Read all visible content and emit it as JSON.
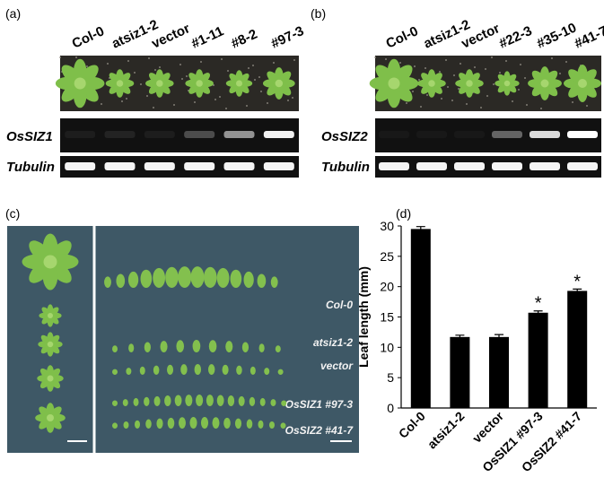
{
  "panels": {
    "a": {
      "label": "(a)",
      "lanes": [
        "Col-0",
        "atsiz1-2",
        "vector",
        "#1-11",
        "#8-2",
        "#97-3"
      ],
      "genes": [
        "OsSIZ1",
        "Tubulin"
      ]
    },
    "b": {
      "label": "(b)",
      "lanes": [
        "Col-0",
        "atsiz1-2",
        "vector",
        "#22-3",
        "#35-10",
        "#41-7"
      ],
      "genes": [
        "OsSIZ2",
        "Tubulin"
      ]
    },
    "c": {
      "label": "(c)",
      "rows": [
        "Col-0",
        "atsiz1-2",
        "vector",
        "OsSIZ1 #97-3",
        "OsSIZ2 #41-7"
      ]
    },
    "d": {
      "label": "(d)"
    }
  },
  "chart_data": {
    "type": "bar",
    "y_label": "Leaf length (mm)",
    "categories": [
      "Col-0",
      "atsiz1-2",
      "vector",
      "OsSIZ1 #97-3",
      "OsSIZ2 #41-7"
    ],
    "values": [
      29.5,
      11.7,
      11.7,
      15.7,
      19.3
    ],
    "errors": [
      0.4,
      0.3,
      0.4,
      0.3,
      0.3
    ],
    "significance": [
      null,
      null,
      null,
      "*",
      "*"
    ],
    "color": "#000000",
    "ylim": [
      0,
      30
    ],
    "yticks": [
      0,
      5,
      10,
      15,
      20,
      25,
      30
    ],
    "grid": false
  }
}
